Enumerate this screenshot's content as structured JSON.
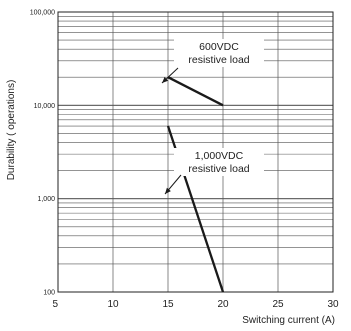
{
  "chart_data": {
    "type": "line",
    "xlabel": "Switching current (A)",
    "ylabel": "Durability ( operations)",
    "xlim": [
      5,
      30
    ],
    "ylim": [
      100,
      100000
    ],
    "y_scale": "log",
    "grid": true,
    "x_tick_labels": [
      "5",
      "10",
      "15",
      "20",
      "25",
      "30"
    ],
    "y_tick_labels": [
      "100",
      "1,000",
      "10,000",
      "100,000"
    ],
    "series": [
      {
        "name": "600VDC resistive load",
        "x": [
          15,
          20
        ],
        "y": [
          20000,
          10000
        ]
      },
      {
        "name": "1,000VDC resistive load",
        "x": [
          15,
          20
        ],
        "y": [
          6000,
          100
        ]
      }
    ],
    "annotations": [
      {
        "lines": [
          "600VDC",
          "resistive load"
        ],
        "series_index": 0
      },
      {
        "lines": [
          "1,000VDC",
          "resistive load"
        ],
        "series_index": 1
      }
    ],
    "colors": {
      "line": "#1a1a1a",
      "grid": "#555555",
      "text": "#222222"
    }
  }
}
